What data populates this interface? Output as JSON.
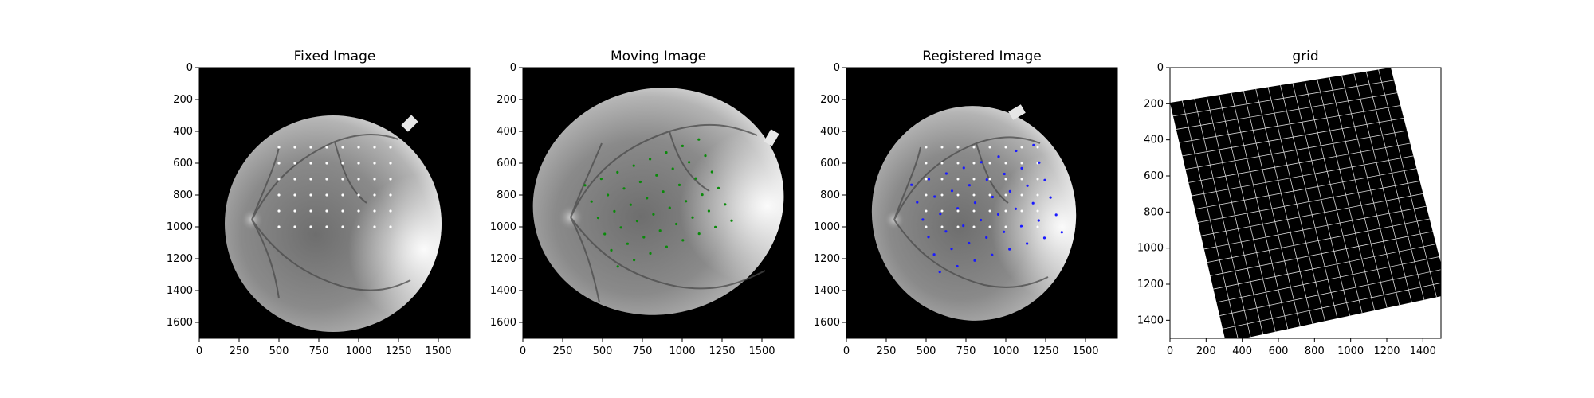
{
  "figure": {
    "panels": [
      {
        "title": "Fixed Image",
        "x_ticks": [
          "0",
          "250",
          "500",
          "750",
          "1000",
          "1250",
          "1500"
        ],
        "y_ticks": [
          "0",
          "200",
          "400",
          "600",
          "800",
          "1000",
          "1200",
          "1400",
          "1600"
        ],
        "image": "fundus-fixed",
        "point_color": "#ffffff"
      },
      {
        "title": "Moving Image",
        "x_ticks": [
          "0",
          "250",
          "500",
          "750",
          "1000",
          "1250",
          "1500"
        ],
        "y_ticks": [
          "0",
          "200",
          "400",
          "600",
          "800",
          "1000",
          "1200",
          "1400",
          "1600"
        ],
        "image": "fundus-moving",
        "point_color": "#0a8a0a"
      },
      {
        "title": "Registered Image",
        "x_ticks": [
          "0",
          "250",
          "500",
          "750",
          "1000",
          "1250",
          "1500"
        ],
        "y_ticks": [
          "0",
          "200",
          "400",
          "600",
          "800",
          "1000",
          "1200",
          "1400",
          "1600"
        ],
        "image": "fundus-registered",
        "point_colors": [
          "#ffffff",
          "#1a1aff"
        ]
      },
      {
        "title": "grid",
        "x_ticks": [
          "0",
          "200",
          "400",
          "600",
          "800",
          "1000",
          "1200",
          "1400"
        ],
        "y_ticks": [
          "0",
          "200",
          "400",
          "600",
          "800",
          "1000",
          "1200",
          "1400"
        ],
        "image": "deformation-grid",
        "grid_line_color": "#d8d8d8"
      }
    ]
  }
}
